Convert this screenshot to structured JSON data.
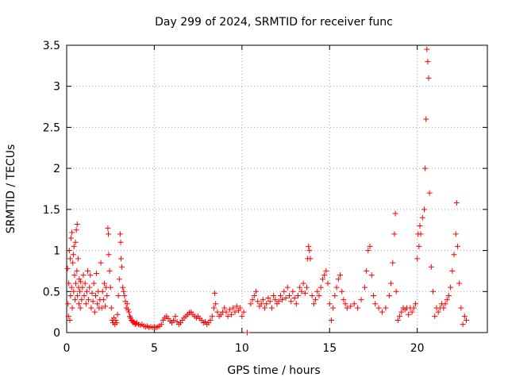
{
  "chart_data": {
    "type": "scatter",
    "title": "Day 299 of 2024, SRMTID for receiver func",
    "xlabel": "GPS time / hours",
    "ylabel": "SRMTID / TECUs",
    "xlim": [
      0,
      24
    ],
    "ylim": [
      0,
      3.5
    ],
    "xticks": [
      0,
      5,
      10,
      15,
      20
    ],
    "xtick_labels": [
      "0",
      "5",
      "10",
      "15",
      "20"
    ],
    "yticks": [
      0,
      0.5,
      1,
      1.5,
      2,
      2.5,
      3,
      3.5
    ],
    "ytick_labels": [
      "0",
      "0.5",
      "1",
      "1.5",
      "2",
      "2.5",
      "3",
      "3.5"
    ],
    "grid": true,
    "marker": "+",
    "color": "#ff0000",
    "series": [
      {
        "name": "SRMTID",
        "points": [
          [
            0.05,
            0.78
          ],
          [
            0.08,
            0.35
          ],
          [
            0.1,
            0.2
          ],
          [
            0.12,
            0.6
          ],
          [
            0.15,
            1.0
          ],
          [
            0.18,
            0.15
          ],
          [
            0.2,
            0.9
          ],
          [
            0.22,
            0.45
          ],
          [
            0.25,
            1.15
          ],
          [
            0.28,
            0.55
          ],
          [
            0.3,
            1.22
          ],
          [
            0.32,
            0.3
          ],
          [
            0.35,
            0.85
          ],
          [
            0.38,
            0.95
          ],
          [
            0.4,
            0.5
          ],
          [
            0.42,
            1.05
          ],
          [
            0.45,
            0.7
          ],
          [
            0.48,
            0.4
          ],
          [
            0.5,
            1.1
          ],
          [
            0.52,
            0.6
          ],
          [
            0.55,
            1.25
          ],
          [
            0.58,
            0.75
          ],
          [
            0.6,
            1.32
          ],
          [
            0.62,
            0.45
          ],
          [
            0.65,
            0.9
          ],
          [
            0.68,
            0.55
          ],
          [
            0.7,
            0.35
          ],
          [
            0.72,
            0.65
          ],
          [
            0.75,
            0.5
          ],
          [
            0.78,
            0.3
          ],
          [
            0.8,
            0.62
          ],
          [
            0.85,
            0.4
          ],
          [
            0.9,
            0.55
          ],
          [
            0.95,
            0.7
          ],
          [
            1.0,
            0.45
          ],
          [
            1.05,
            0.6
          ],
          [
            1.1,
            0.35
          ],
          [
            1.15,
            0.5
          ],
          [
            1.2,
            0.75
          ],
          [
            1.25,
            0.4
          ],
          [
            1.3,
            0.55
          ],
          [
            1.35,
            0.7
          ],
          [
            1.4,
            0.3
          ],
          [
            1.45,
            0.48
          ],
          [
            1.5,
            0.38
          ],
          [
            1.55,
            0.6
          ],
          [
            1.6,
            0.25
          ],
          [
            1.65,
            0.45
          ],
          [
            1.7,
            0.72
          ],
          [
            1.75,
            0.35
          ],
          [
            1.8,
            0.5
          ],
          [
            1.85,
            0.3
          ],
          [
            1.9,
            0.4
          ],
          [
            1.95,
            0.85
          ],
          [
            2.0,
            0.3
          ],
          [
            2.05,
            0.5
          ],
          [
            2.1,
            0.4
          ],
          [
            2.15,
            0.6
          ],
          [
            2.2,
            0.32
          ],
          [
            2.25,
            0.55
          ],
          [
            2.3,
            0.45
          ],
          [
            2.35,
            1.27
          ],
          [
            2.38,
            1.2
          ],
          [
            2.4,
            0.95
          ],
          [
            2.45,
            0.75
          ],
          [
            2.5,
            0.55
          ],
          [
            2.55,
            0.3
          ],
          [
            2.6,
            0.15
          ],
          [
            2.65,
            0.12
          ],
          [
            2.7,
            0.18
          ],
          [
            2.75,
            0.1
          ],
          [
            2.8,
            0.15
          ],
          [
            2.85,
            0.12
          ],
          [
            2.9,
            0.22
          ],
          [
            2.95,
            0.45
          ],
          [
            3.0,
            0.65
          ],
          [
            3.05,
            1.2
          ],
          [
            3.08,
            1.1
          ],
          [
            3.1,
            0.9
          ],
          [
            3.15,
            0.8
          ],
          [
            3.2,
            0.55
          ],
          [
            3.25,
            0.5
          ],
          [
            3.3,
            0.45
          ],
          [
            3.35,
            0.38
          ],
          [
            3.4,
            0.3
          ],
          [
            3.45,
            0.35
          ],
          [
            3.5,
            0.28
          ],
          [
            3.55,
            0.25
          ],
          [
            3.6,
            0.2
          ],
          [
            3.65,
            0.18
          ],
          [
            3.7,
            0.15
          ],
          [
            3.75,
            0.14
          ],
          [
            3.8,
            0.12
          ],
          [
            3.85,
            0.13
          ],
          [
            3.9,
            0.1
          ],
          [
            3.95,
            0.11
          ],
          [
            4.0,
            0.12
          ],
          [
            4.1,
            0.1
          ],
          [
            4.2,
            0.09
          ],
          [
            4.3,
            0.1
          ],
          [
            4.4,
            0.08
          ],
          [
            4.5,
            0.07
          ],
          [
            4.6,
            0.08
          ],
          [
            4.7,
            0.06
          ],
          [
            4.8,
            0.07
          ],
          [
            4.9,
            0.06
          ],
          [
            5.0,
            0.07
          ],
          [
            5.1,
            0.06
          ],
          [
            5.2,
            0.07
          ],
          [
            5.3,
            0.08
          ],
          [
            5.4,
            0.1
          ],
          [
            5.5,
            0.15
          ],
          [
            5.6,
            0.18
          ],
          [
            5.7,
            0.2
          ],
          [
            5.8,
            0.17
          ],
          [
            5.9,
            0.14
          ],
          [
            6.0,
            0.12
          ],
          [
            6.1,
            0.15
          ],
          [
            6.2,
            0.2
          ],
          [
            6.3,
            0.13
          ],
          [
            6.4,
            0.1
          ],
          [
            6.5,
            0.12
          ],
          [
            6.6,
            0.15
          ],
          [
            6.7,
            0.18
          ],
          [
            6.8,
            0.2
          ],
          [
            6.9,
            0.22
          ],
          [
            7.0,
            0.24
          ],
          [
            7.1,
            0.25
          ],
          [
            7.2,
            0.22
          ],
          [
            7.3,
            0.2
          ],
          [
            7.4,
            0.18
          ],
          [
            7.5,
            0.2
          ],
          [
            7.6,
            0.17
          ],
          [
            7.7,
            0.15
          ],
          [
            7.8,
            0.12
          ],
          [
            7.9,
            0.13
          ],
          [
            8.0,
            0.1
          ],
          [
            8.1,
            0.12
          ],
          [
            8.2,
            0.15
          ],
          [
            8.3,
            0.2
          ],
          [
            8.4,
            0.3
          ],
          [
            8.45,
            0.48
          ],
          [
            8.5,
            0.35
          ],
          [
            8.6,
            0.25
          ],
          [
            8.7,
            0.2
          ],
          [
            8.8,
            0.22
          ],
          [
            8.9,
            0.25
          ],
          [
            9.0,
            0.3
          ],
          [
            9.1,
            0.25
          ],
          [
            9.2,
            0.2
          ],
          [
            9.3,
            0.28
          ],
          [
            9.4,
            0.22
          ],
          [
            9.5,
            0.3
          ],
          [
            9.6,
            0.25
          ],
          [
            9.7,
            0.32
          ],
          [
            9.8,
            0.27
          ],
          [
            9.9,
            0.3
          ],
          [
            10.0,
            0.2
          ],
          [
            10.1,
            0.25
          ],
          [
            10.3,
            0.0
          ],
          [
            10.5,
            0.35
          ],
          [
            10.6,
            0.4
          ],
          [
            10.7,
            0.45
          ],
          [
            10.8,
            0.5
          ],
          [
            10.9,
            0.38
          ],
          [
            11.0,
            0.32
          ],
          [
            11.1,
            0.35
          ],
          [
            11.2,
            0.4
          ],
          [
            11.3,
            0.3
          ],
          [
            11.4,
            0.35
          ],
          [
            11.5,
            0.42
          ],
          [
            11.6,
            0.38
          ],
          [
            11.7,
            0.3
          ],
          [
            11.8,
            0.45
          ],
          [
            11.9,
            0.4
          ],
          [
            12.0,
            0.35
          ],
          [
            12.1,
            0.38
          ],
          [
            12.2,
            0.45
          ],
          [
            12.3,
            0.4
          ],
          [
            12.4,
            0.5
          ],
          [
            12.5,
            0.42
          ],
          [
            12.6,
            0.55
          ],
          [
            12.7,
            0.45
          ],
          [
            12.8,
            0.38
          ],
          [
            12.9,
            0.5
          ],
          [
            13.0,
            0.42
          ],
          [
            13.1,
            0.35
          ],
          [
            13.2,
            0.45
          ],
          [
            13.3,
            0.55
          ],
          [
            13.4,
            0.5
          ],
          [
            13.5,
            0.6
          ],
          [
            13.6,
            0.48
          ],
          [
            13.7,
            0.55
          ],
          [
            13.75,
            0.9
          ],
          [
            13.8,
            1.05
          ],
          [
            13.85,
            1.0
          ],
          [
            13.9,
            0.9
          ],
          [
            14.0,
            0.45
          ],
          [
            14.1,
            0.35
          ],
          [
            14.2,
            0.4
          ],
          [
            14.3,
            0.5
          ],
          [
            14.4,
            0.45
          ],
          [
            14.5,
            0.55
          ],
          [
            14.6,
            0.65
          ],
          [
            14.7,
            0.7
          ],
          [
            14.8,
            0.75
          ],
          [
            14.9,
            0.6
          ],
          [
            15.0,
            0.35
          ],
          [
            15.1,
            0.15
          ],
          [
            15.2,
            0.3
          ],
          [
            15.3,
            0.45
          ],
          [
            15.4,
            0.55
          ],
          [
            15.5,
            0.65
          ],
          [
            15.6,
            0.7
          ],
          [
            15.7,
            0.5
          ],
          [
            15.8,
            0.4
          ],
          [
            15.9,
            0.35
          ],
          [
            16.0,
            0.3
          ],
          [
            16.2,
            0.32
          ],
          [
            16.4,
            0.35
          ],
          [
            16.6,
            0.3
          ],
          [
            16.8,
            0.4
          ],
          [
            17.0,
            0.55
          ],
          [
            17.1,
            0.75
          ],
          [
            17.2,
            1.0
          ],
          [
            17.3,
            1.05
          ],
          [
            17.4,
            0.7
          ],
          [
            17.5,
            0.45
          ],
          [
            17.6,
            0.35
          ],
          [
            17.8,
            0.3
          ],
          [
            18.0,
            0.25
          ],
          [
            18.2,
            0.3
          ],
          [
            18.4,
            0.45
          ],
          [
            18.5,
            0.6
          ],
          [
            18.6,
            0.85
          ],
          [
            18.7,
            1.2
          ],
          [
            18.75,
            1.45
          ],
          [
            18.8,
            0.5
          ],
          [
            18.9,
            0.15
          ],
          [
            19.0,
            0.2
          ],
          [
            19.1,
            0.25
          ],
          [
            19.2,
            0.3
          ],
          [
            19.3,
            0.28
          ],
          [
            19.4,
            0.3
          ],
          [
            19.5,
            0.22
          ],
          [
            19.6,
            0.3
          ],
          [
            19.7,
            0.25
          ],
          [
            19.8,
            0.3
          ],
          [
            19.9,
            0.35
          ],
          [
            20.0,
            0.9
          ],
          [
            20.05,
            1.2
          ],
          [
            20.1,
            1.05
          ],
          [
            20.15,
            1.3
          ],
          [
            20.2,
            1.2
          ],
          [
            20.3,
            1.4
          ],
          [
            20.4,
            1.5
          ],
          [
            20.45,
            2.0
          ],
          [
            20.5,
            2.6
          ],
          [
            20.55,
            3.45
          ],
          [
            20.6,
            3.3
          ],
          [
            20.65,
            3.1
          ],
          [
            20.7,
            1.7
          ],
          [
            20.8,
            0.8
          ],
          [
            20.9,
            0.5
          ],
          [
            21.0,
            0.2
          ],
          [
            21.1,
            0.3
          ],
          [
            21.2,
            0.25
          ],
          [
            21.3,
            0.3
          ],
          [
            21.4,
            0.35
          ],
          [
            21.5,
            0.3
          ],
          [
            21.6,
            0.35
          ],
          [
            21.7,
            0.4
          ],
          [
            21.8,
            0.45
          ],
          [
            21.9,
            0.55
          ],
          [
            22.0,
            0.75
          ],
          [
            22.1,
            0.95
          ],
          [
            22.2,
            1.2
          ],
          [
            22.25,
            1.58
          ],
          [
            22.3,
            1.05
          ],
          [
            22.4,
            0.6
          ],
          [
            22.5,
            0.3
          ],
          [
            22.6,
            0.1
          ],
          [
            22.7,
            0.2
          ],
          [
            22.8,
            0.15
          ]
        ]
      }
    ]
  }
}
